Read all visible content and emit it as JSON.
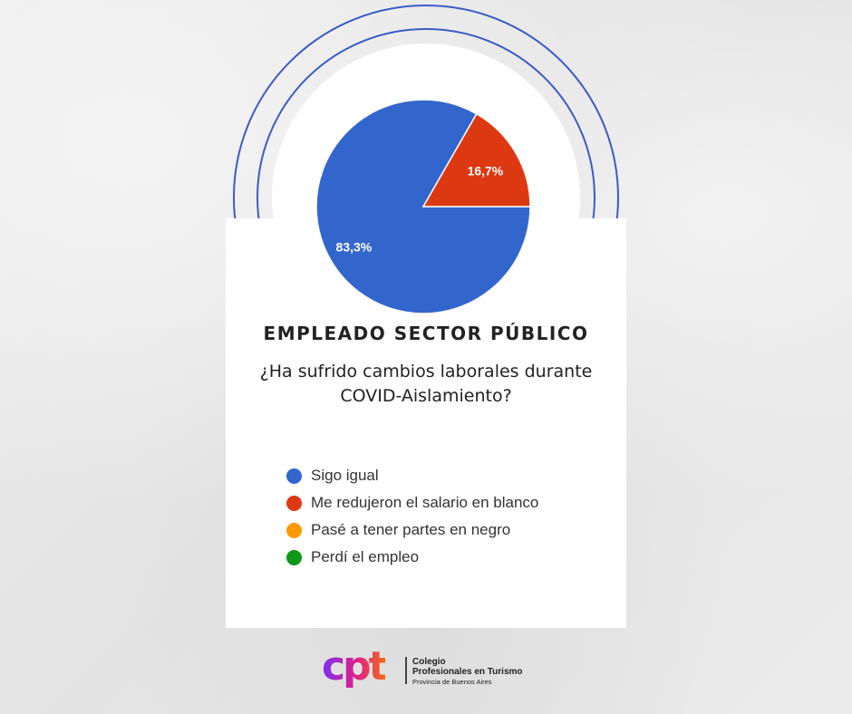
{
  "title": "EMPLEADO SECTOR PÚBLICO",
  "subtitle_line1": "¿Ha sufrido cambios laborales durante",
  "subtitle_line2": "COVID-Aislamiento?",
  "chart_data": {
    "type": "pie",
    "slices": [
      {
        "label": "Sigo igual",
        "value": 83.3,
        "display": "83,3%",
        "color": "#3366cc"
      },
      {
        "label": "Me redujeron el salario en blanco",
        "value": 16.7,
        "display": "16,7%",
        "color": "#dc3912"
      },
      {
        "label": "Pasé a tener partes en negro",
        "value": 0,
        "display": "",
        "color": "#ff9900"
      },
      {
        "label": "Perdí el empleo",
        "value": 0,
        "display": "",
        "color": "#109618"
      }
    ],
    "legend_position": "bottom"
  },
  "logo": {
    "mark": "cpt",
    "line1": "Colegio",
    "line2": "Profesionales en Turismo",
    "line3": "Provincia de Buenos Aires"
  }
}
